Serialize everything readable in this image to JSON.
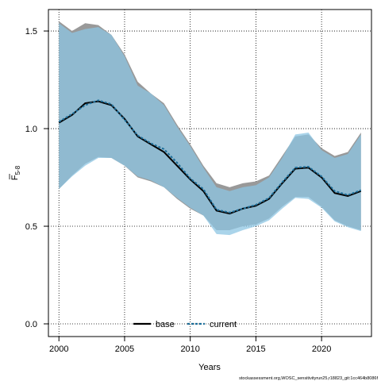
{
  "chart_data": {
    "type": "area",
    "xlabel": "Years",
    "ylabel": "F",
    "ylabel_sub": "5-8",
    "xlim": [
      1999.2,
      2023.8
    ],
    "ylim": [
      -0.065,
      1.61
    ],
    "xticks": [
      2000,
      2005,
      2010,
      2015,
      2020
    ],
    "yticks": [
      0.0,
      0.5,
      1.0,
      1.5
    ],
    "ytick_labels": [
      "0.0",
      "0.5",
      "1.0",
      "1.5"
    ],
    "grid": true,
    "legend_position": "bottom-center",
    "footer": "stockassessment.org,WOSC_sensitivityrun25,r18823_git:1cc464b8086f",
    "x": [
      2000,
      2001,
      2002,
      2003,
      2004,
      2005,
      2006,
      2007,
      2008,
      2009,
      2010,
      2011,
      2012,
      2013,
      2014,
      2015,
      2016,
      2017,
      2018,
      2019,
      2020,
      2021,
      2022,
      2023
    ],
    "series": [
      {
        "name": "base",
        "color": "#000000",
        "band_color": "#999999",
        "line_style": "solid",
        "values": [
          1.03,
          1.07,
          1.13,
          1.14,
          1.12,
          1.05,
          0.96,
          0.92,
          0.88,
          0.81,
          0.74,
          0.68,
          0.58,
          0.565,
          0.59,
          0.605,
          0.64,
          0.72,
          0.795,
          0.8,
          0.75,
          0.67,
          0.655,
          0.68
        ],
        "lower": [
          0.69,
          0.76,
          0.82,
          0.855,
          0.85,
          0.81,
          0.75,
          0.73,
          0.7,
          0.64,
          0.59,
          0.555,
          0.48,
          0.48,
          0.5,
          0.51,
          0.54,
          0.6,
          0.65,
          0.65,
          0.6,
          0.53,
          0.5,
          0.48
        ],
        "upper": [
          1.55,
          1.5,
          1.54,
          1.53,
          1.48,
          1.38,
          1.24,
          1.18,
          1.13,
          1.02,
          0.92,
          0.81,
          0.72,
          0.7,
          0.72,
          0.73,
          0.76,
          0.86,
          0.96,
          0.97,
          0.9,
          0.86,
          0.88,
          0.98
        ]
      },
      {
        "name": "current",
        "color": "#1f6f9a",
        "band_color": "#8ec6e3",
        "line_style": "dashed",
        "values": [
          1.035,
          1.075,
          1.12,
          1.145,
          1.125,
          1.045,
          0.965,
          0.925,
          0.895,
          0.825,
          0.745,
          0.69,
          0.585,
          0.57,
          0.59,
          0.61,
          0.645,
          0.725,
          0.8,
          0.805,
          0.755,
          0.68,
          0.66,
          0.685
        ],
        "lower": [
          0.69,
          0.755,
          0.81,
          0.85,
          0.85,
          0.81,
          0.755,
          0.735,
          0.7,
          0.645,
          0.595,
          0.555,
          0.46,
          0.455,
          0.48,
          0.5,
          0.53,
          0.59,
          0.645,
          0.64,
          0.595,
          0.525,
          0.495,
          0.475
        ],
        "upper": [
          1.54,
          1.49,
          1.51,
          1.52,
          1.48,
          1.37,
          1.22,
          1.18,
          1.12,
          1.01,
          0.91,
          0.8,
          0.7,
          0.68,
          0.7,
          0.71,
          0.75,
          0.85,
          0.97,
          0.98,
          0.89,
          0.85,
          0.87,
          0.97
        ]
      }
    ]
  }
}
